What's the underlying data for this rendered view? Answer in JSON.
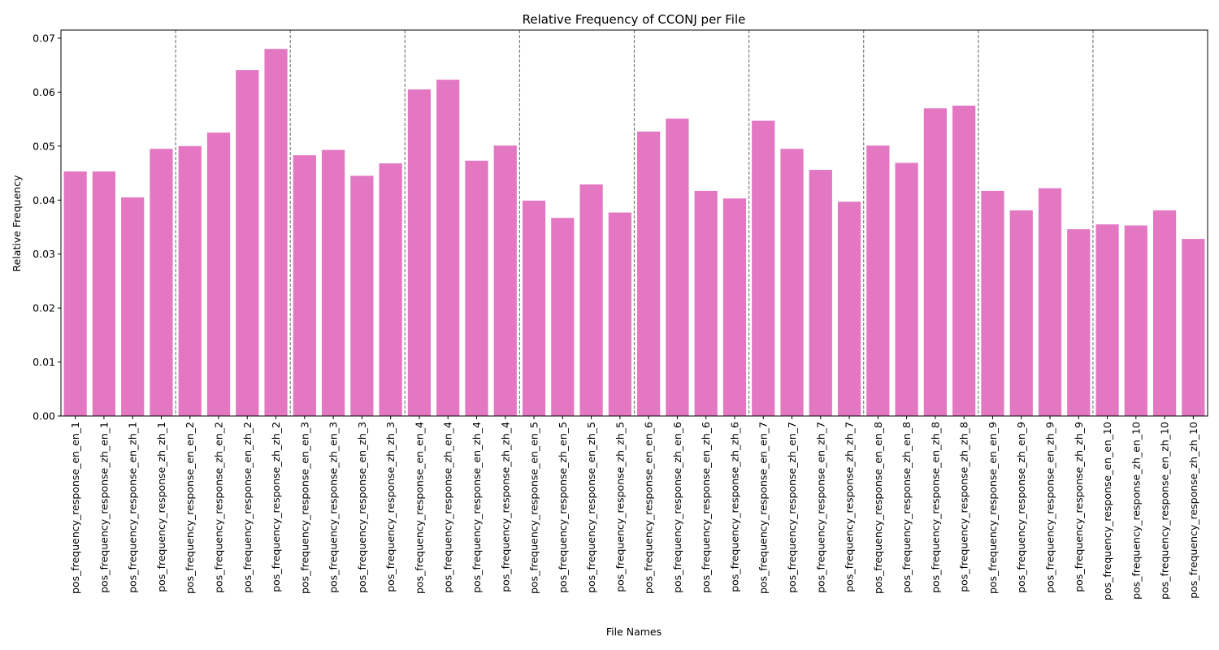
{
  "chart_data": {
    "type": "bar",
    "title": "Relative Frequency of CCONJ per File",
    "xlabel": "File Names",
    "ylabel": "Relative Frequency",
    "ylim": [
      0,
      0.0715
    ],
    "yticks": [
      0.0,
      0.01,
      0.02,
      0.03,
      0.04,
      0.05,
      0.06,
      0.07
    ],
    "ytick_labels": [
      "0.00",
      "0.01",
      "0.02",
      "0.03",
      "0.04",
      "0.05",
      "0.06",
      "0.07"
    ],
    "bar_color": "#e377c2",
    "separator_color": "#808080",
    "group_separators_after_every": 4,
    "grid": false,
    "categories": [
      "pos_frequency_response_en_en_1",
      "pos_frequency_response_zh_en_1",
      "pos_frequency_response_en_zh_1",
      "pos_frequency_response_zh_zh_1",
      "pos_frequency_response_en_en_2",
      "pos_frequency_response_zh_en_2",
      "pos_frequency_response_en_zh_2",
      "pos_frequency_response_zh_zh_2",
      "pos_frequency_response_en_en_3",
      "pos_frequency_response_zh_en_3",
      "pos_frequency_response_en_zh_3",
      "pos_frequency_response_zh_zh_3",
      "pos_frequency_response_en_en_4",
      "pos_frequency_response_zh_en_4",
      "pos_frequency_response_en_zh_4",
      "pos_frequency_response_zh_zh_4",
      "pos_frequency_response_en_en_5",
      "pos_frequency_response_zh_en_5",
      "pos_frequency_response_en_zh_5",
      "pos_frequency_response_zh_zh_5",
      "pos_frequency_response_en_en_6",
      "pos_frequency_response_zh_en_6",
      "pos_frequency_response_en_zh_6",
      "pos_frequency_response_zh_zh_6",
      "pos_frequency_response_en_en_7",
      "pos_frequency_response_zh_en_7",
      "pos_frequency_response_en_zh_7",
      "pos_frequency_response_zh_zh_7",
      "pos_frequency_response_en_en_8",
      "pos_frequency_response_zh_en_8",
      "pos_frequency_response_en_zh_8",
      "pos_frequency_response_zh_zh_8",
      "pos_frequency_response_en_en_9",
      "pos_frequency_response_zh_en_9",
      "pos_frequency_response_en_zh_9",
      "pos_frequency_response_zh_zh_9",
      "pos_frequency_response_en_en_10",
      "pos_frequency_response_zh_en_10",
      "pos_frequency_response_en_zh_10",
      "pos_frequency_response_zh_zh_10"
    ],
    "values": [
      0.0453,
      0.0453,
      0.0405,
      0.0495,
      0.05,
      0.0525,
      0.0641,
      0.068,
      0.0483,
      0.0493,
      0.0445,
      0.0468,
      0.0605,
      0.0623,
      0.0473,
      0.0501,
      0.0399,
      0.0367,
      0.0429,
      0.0377,
      0.0527,
      0.0551,
      0.0417,
      0.0403,
      0.0547,
      0.0495,
      0.0456,
      0.0397,
      0.0501,
      0.0469,
      0.057,
      0.0575,
      0.0417,
      0.0381,
      0.0422,
      0.0346,
      0.0355,
      0.0353,
      0.0381,
      0.0328
    ]
  }
}
